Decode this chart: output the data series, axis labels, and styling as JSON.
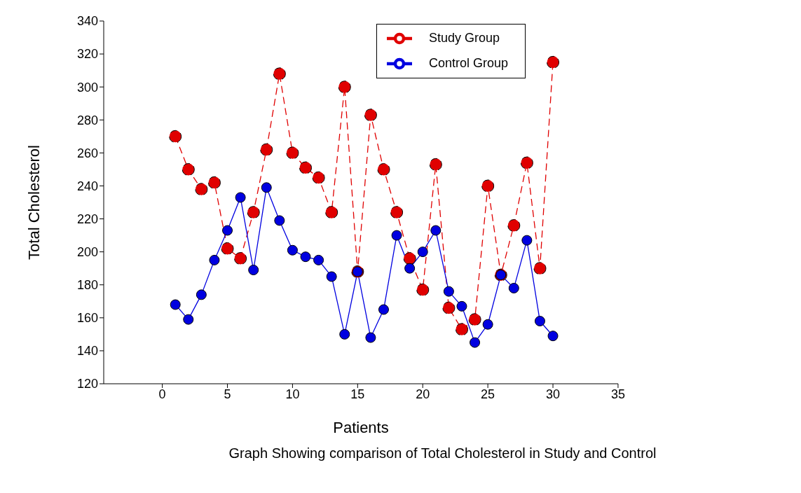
{
  "chart_data": {
    "type": "line",
    "xlabel": "Patients",
    "ylabel": "Total Cholesterol",
    "annotations": [
      "Graph Showing comparison of Total Cholesterol in Study and Control"
    ],
    "x": [
      1,
      2,
      3,
      4,
      5,
      6,
      7,
      8,
      9,
      10,
      11,
      12,
      13,
      14,
      15,
      16,
      17,
      18,
      19,
      20,
      21,
      22,
      23,
      24,
      25,
      26,
      27,
      28,
      29,
      30
    ],
    "series": [
      {
        "name": "Study Group",
        "color": "#e00000",
        "line_style": "dashed",
        "values": [
          270,
          250,
          238,
          242,
          202,
          196,
          224,
          262,
          308,
          260,
          251,
          245,
          224,
          300,
          188,
          283,
          250,
          224,
          196,
          177,
          253,
          166,
          153,
          159,
          240,
          186,
          216,
          254,
          190,
          315
        ]
      },
      {
        "name": "Control Group",
        "color": "#0000e0",
        "line_style": "solid",
        "values": [
          168,
          159,
          174,
          195,
          213,
          233,
          189,
          239,
          219,
          201,
          197,
          195,
          185,
          150,
          188,
          148,
          165,
          210,
          190,
          200,
          213,
          176,
          167,
          145,
          156,
          186,
          178,
          207,
          158,
          149
        ]
      }
    ],
    "xlim": [
      -4.5,
      35
    ],
    "xticks": [
      0,
      5,
      10,
      15,
      20,
      25,
      30,
      35
    ],
    "ylim": [
      120,
      340
    ],
    "yticks": [
      120,
      140,
      160,
      180,
      200,
      220,
      240,
      260,
      280,
      300,
      320,
      340
    ],
    "grid": false,
    "legend": "top right",
    "marker": "circle"
  }
}
